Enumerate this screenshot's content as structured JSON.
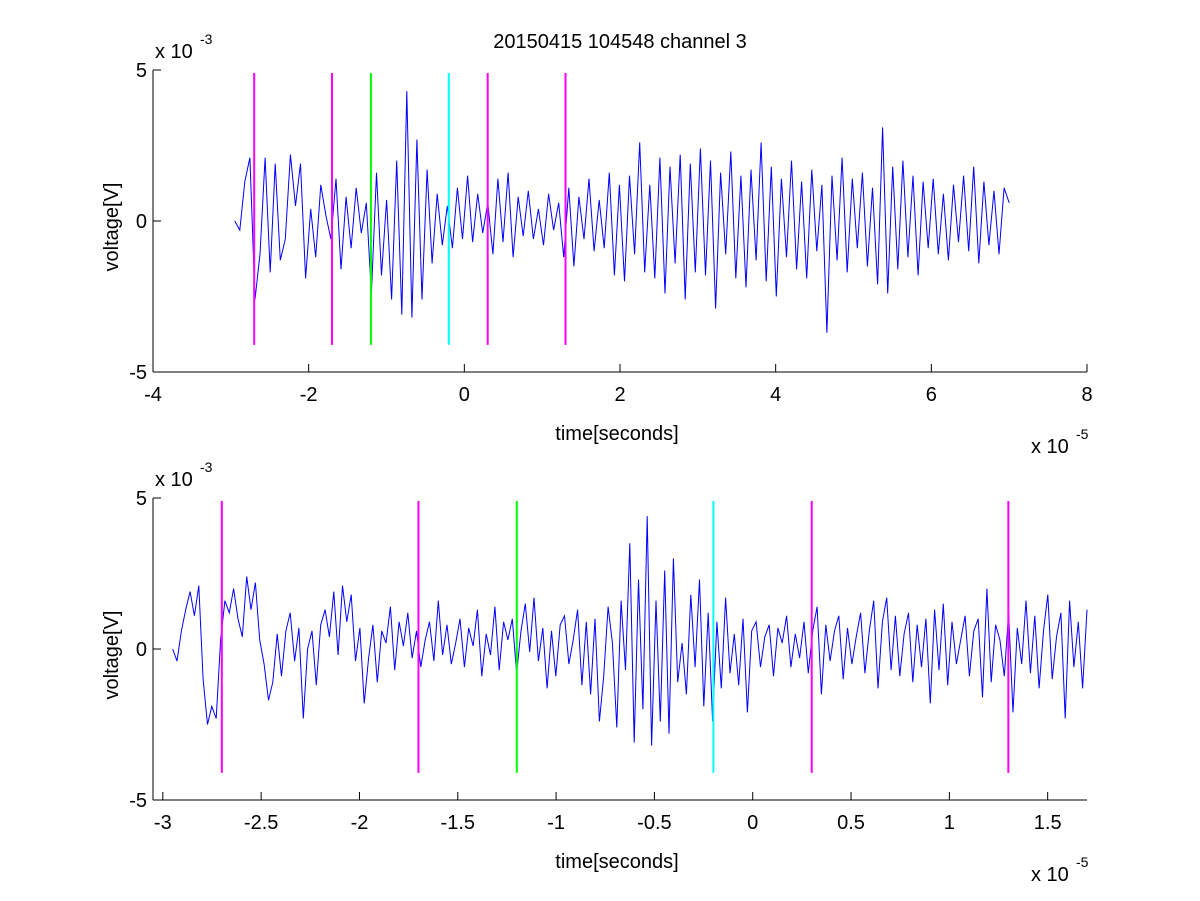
{
  "figure": {
    "title": "20150415 104548 channel 3"
  },
  "colors": {
    "signal": "#0000ff",
    "marker_magenta": "#ff00ff",
    "marker_green": "#00ff00",
    "marker_cyan": "#00ffff",
    "axes": "#000000"
  },
  "chart_data": [
    {
      "type": "line",
      "title": "20150415 104548 channel 3",
      "xlabel": "time[seconds]",
      "ylabel": "voltage[V]",
      "x_multiplier": "x 10",
      "x_exponent": "-5",
      "y_multiplier": "x 10",
      "y_exponent": "-3",
      "xlim": [
        -4,
        8
      ],
      "ylim": [
        -5,
        5
      ],
      "x_ticks": [
        -4,
        -2,
        0,
        2,
        4,
        6,
        8
      ],
      "x_tick_labels": [
        "-4",
        "-2",
        "0",
        "2",
        "4",
        "6",
        "8"
      ],
      "y_ticks": [
        -5,
        0,
        5
      ],
      "y_tick_labels": [
        "-5",
        "0",
        "5"
      ],
      "grid": false,
      "series": [
        {
          "x_start": -2.95,
          "x_end": 7.0,
          "values": [
            0.0,
            -0.3,
            1.3,
            2.1,
            -2.6,
            -1.1,
            2.1,
            -1.7,
            1.9,
            -1.3,
            -0.6,
            2.2,
            0.5,
            1.9,
            -1.9,
            0.4,
            -1.2,
            1.2,
            0.2,
            -0.6,
            1.4,
            -1.6,
            0.8,
            -0.9,
            1.1,
            -0.4,
            0.6,
            -2.4,
            1.6,
            -1.8,
            0.7,
            -2.6,
            2.0,
            -3.1,
            4.3,
            -3.2,
            2.7,
            -2.6,
            1.7,
            -1.4,
            0.9,
            -0.8,
            0.5,
            -0.9,
            1.1,
            -0.6,
            1.5,
            -0.7,
            0.9,
            -0.4,
            0.6,
            -1.1,
            1.4,
            -0.7,
            1.6,
            -1.2,
            0.8,
            -0.5,
            1.0,
            -0.6,
            0.4,
            -0.8,
            0.9,
            -0.3,
            0.6,
            -1.2,
            1.1,
            -1.5,
            0.8,
            -0.6,
            1.4,
            -1.0,
            0.7,
            -0.9,
            1.6,
            -1.8,
            1.2,
            -2.0,
            1.5,
            -1.1,
            2.6,
            -1.7,
            1.2,
            -1.9,
            2.1,
            -2.4,
            1.8,
            -1.4,
            2.2,
            -2.6,
            1.9,
            -1.7,
            2.4,
            -1.8,
            2.0,
            -2.9,
            1.6,
            -1.1,
            2.3,
            -1.9,
            1.5,
            -2.2,
            1.7,
            -1.3,
            2.6,
            -2.0,
            1.8,
            -2.5,
            1.4,
            -1.2,
            2.0,
            -1.6,
            1.3,
            -1.9,
            1.7,
            -1.0,
            1.2,
            -3.7,
            1.5,
            -1.3,
            2.1,
            -1.7,
            1.4,
            -0.9,
            1.6,
            -1.5,
            1.1,
            -2.1,
            3.1,
            -2.4,
            1.8,
            -1.6,
            2.0,
            -1.2,
            1.5,
            -1.8,
            1.3,
            -0.9,
            1.4,
            -1.1,
            0.9,
            -1.3,
            1.2,
            -0.7,
            1.5,
            -1.0,
            1.8,
            -1.4,
            1.3,
            -0.8,
            1.0,
            -1.1,
            1.1,
            0.6
          ]
        }
      ],
      "markers": [
        {
          "x": -2.7,
          "color": "#ff00ff"
        },
        {
          "x": -1.7,
          "color": "#ff00ff"
        },
        {
          "x": -1.2,
          "color": "#00ff00"
        },
        {
          "x": -0.2,
          "color": "#00ffff"
        },
        {
          "x": 0.3,
          "color": "#ff00ff"
        },
        {
          "x": 1.3,
          "color": "#ff00ff"
        }
      ],
      "marker_range": [
        -4.1,
        4.9
      ]
    },
    {
      "type": "line",
      "xlabel": "time[seconds]",
      "ylabel": "voltage[V]",
      "x_multiplier": "x 10",
      "x_exponent": "-5",
      "y_multiplier": "x 10",
      "y_exponent": "-3",
      "xlim": [
        -3.05,
        1.7
      ],
      "ylim": [
        -5,
        5
      ],
      "x_ticks": [
        -3,
        -2.5,
        -2,
        -1.5,
        -1,
        -0.5,
        0,
        0.5,
        1,
        1.5
      ],
      "x_tick_labels": [
        "-3",
        "-2.5",
        "-2",
        "-1.5",
        "-1",
        "-0.5",
        "0",
        "0.5",
        "1",
        "1.5"
      ],
      "y_ticks": [
        -5,
        0,
        5
      ],
      "y_tick_labels": [
        "-5",
        "0",
        "5"
      ],
      "grid": false,
      "series": [
        {
          "x_start": -2.95,
          "x_end": 1.7,
          "values": [
            0.0,
            -0.4,
            0.6,
            1.3,
            1.9,
            1.1,
            2.1,
            -1.0,
            -2.5,
            -1.9,
            -2.3,
            0.3,
            1.6,
            1.2,
            2.0,
            1.0,
            0.4,
            2.4,
            1.3,
            2.2,
            0.3,
            -0.5,
            -1.7,
            -1.1,
            0.5,
            -0.9,
            0.6,
            1.2,
            -0.4,
            0.7,
            -2.3,
            0.0,
            0.6,
            -1.2,
            0.8,
            1.3,
            0.4,
            1.9,
            -0.2,
            2.1,
            0.9,
            1.8,
            -0.4,
            0.7,
            -1.8,
            -0.3,
            0.8,
            -1.1,
            0.6,
            0.2,
            1.4,
            -0.7,
            0.9,
            0.1,
            1.2,
            -0.3,
            0.6,
            -0.6,
            0.3,
            0.9,
            -0.4,
            1.6,
            -0.2,
            0.8,
            -0.5,
            0.2,
            1.0,
            -0.6,
            0.7,
            0.1,
            1.3,
            -0.9,
            0.5,
            -0.2,
            1.4,
            -0.7,
            0.9,
            0.3,
            1.0,
            -0.8,
            0.6,
            1.5,
            -0.1,
            1.7,
            -0.4,
            0.7,
            -1.3,
            0.6,
            -0.9,
            0.8,
            1.1,
            -0.5,
            0.3,
            1.3,
            -1.2,
            0.9,
            -1.5,
            1.0,
            -2.4,
            -0.9,
            1.4,
            0.2,
            -2.6,
            1.6,
            -0.7,
            3.5,
            -3.1,
            2.3,
            -2.0,
            4.4,
            -3.2,
            1.6,
            -2.4,
            2.6,
            -2.8,
            3.0,
            -1.1,
            0.2,
            -1.5,
            1.8,
            -0.6,
            2.3,
            -1.9,
            1.2,
            -2.4,
            0.9,
            -1.3,
            1.7,
            -0.8,
            0.5,
            -1.2,
            1.0,
            -2.1,
            0.6,
            0.9,
            -0.6,
            0.4,
            0.8,
            -0.9,
            0.7,
            0.2,
            1.1,
            -0.6,
            0.5,
            -0.3,
            0.9,
            -0.8,
            0.6,
            1.4,
            -1.5,
            0.8,
            -0.4,
            0.6,
            1.1,
            -1.0,
            0.7,
            -0.5,
            0.4,
            1.2,
            -0.8,
            0.6,
            1.6,
            -1.3,
            0.9,
            1.7,
            -0.7,
            1.1,
            -0.9,
            0.5,
            1.2,
            -1.1,
            0.8,
            -0.6,
            1.0,
            -1.8,
            1.3,
            -0.7,
            1.5,
            -1.2,
            0.9,
            -0.5,
            0.3,
            1.1,
            -0.9,
            0.6,
            1.0,
            -1.6,
            2.0,
            -1.1,
            0.8,
            0.3,
            -0.9,
            1.2,
            -2.1,
            0.7,
            -0.5,
            1.6,
            -0.8,
            1.1,
            -1.3,
            0.6,
            1.8,
            -1.0,
            0.4,
            1.2,
            -2.3,
            1.6,
            -0.6,
            0.9,
            -1.3,
            1.3
          ]
        }
      ],
      "markers": [
        {
          "x": -2.7,
          "color": "#ff00ff"
        },
        {
          "x": -1.7,
          "color": "#ff00ff"
        },
        {
          "x": -1.2,
          "color": "#00ff00"
        },
        {
          "x": -0.2,
          "color": "#00ffff"
        },
        {
          "x": 0.3,
          "color": "#ff00ff"
        },
        {
          "x": 1.3,
          "color": "#ff00ff"
        }
      ],
      "marker_range": [
        -4.1,
        4.9
      ]
    }
  ]
}
